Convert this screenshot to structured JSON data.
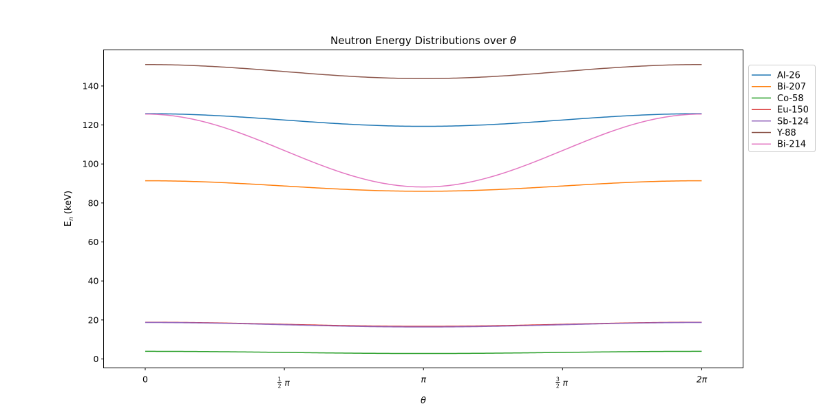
{
  "chart_data": {
    "type": "line",
    "title": "Neutron Energy Distributions over θ",
    "title_text": "Neutron Energy Distributions over ",
    "title_symbol": "θ",
    "xlabel": "θ",
    "ylabel": "E",
    "ylabel_sub": "n",
    "ylabel_unit": " (keV)",
    "xlim": [
      -0.47,
      6.75
    ],
    "ylim": [
      -4.6,
      158.5
    ],
    "grid": false,
    "legend_position": "outside-top-right",
    "x_ticks": [
      {
        "value": 0,
        "label": "0",
        "frac": false
      },
      {
        "value": 1.5708,
        "label": "π",
        "frac": true,
        "num": "1",
        "den": "2"
      },
      {
        "value": 3.1416,
        "label": "π",
        "frac": false
      },
      {
        "value": 4.7124,
        "label": "π",
        "frac": true,
        "num": "3",
        "den": "2"
      },
      {
        "value": 6.2832,
        "label": "2π",
        "frac": false
      }
    ],
    "y_ticks": [
      0,
      20,
      40,
      60,
      80,
      100,
      120,
      140
    ],
    "y_tick_labels": [
      "0",
      "20",
      "40",
      "60",
      "80",
      "100",
      "120",
      "140"
    ],
    "series": [
      {
        "name": "Al-26",
        "color": "#1f77b4",
        "max": 125.8,
        "min": 119.3,
        "shape": "cos"
      },
      {
        "name": "Bi-207",
        "color": "#ff7f0e",
        "max": 91.4,
        "min": 86.0,
        "shape": "cos"
      },
      {
        "name": "Co-58",
        "color": "#2ca02c",
        "max": 3.9,
        "min": 2.8,
        "shape": "cos"
      },
      {
        "name": "Eu-150",
        "color": "#d62728",
        "max": 18.8,
        "min": 16.7,
        "shape": "cos"
      },
      {
        "name": "Sb-124",
        "color": "#9467bd",
        "max": 18.7,
        "min": 16.4,
        "shape": "cos"
      },
      {
        "name": "Y-88",
        "color": "#8c564b",
        "max": 151.0,
        "min": 143.8,
        "shape": "cos"
      },
      {
        "name": "Bi-214",
        "color": "#e377c2",
        "max": 125.6,
        "min": 88.2,
        "shape": "cos"
      }
    ]
  }
}
